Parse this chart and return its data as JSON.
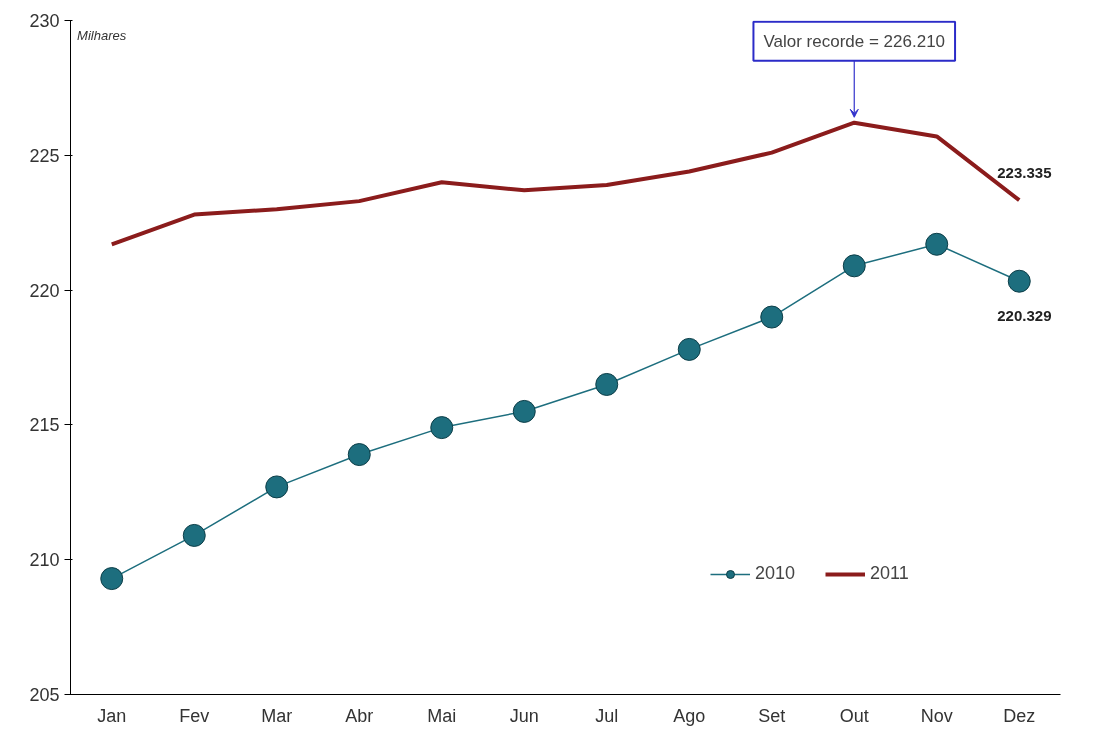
{
  "chart_data": {
    "type": "line",
    "ylabel": "Milhares",
    "categories": [
      "Jan",
      "Fev",
      "Mar",
      "Abr",
      "Mai",
      "Jun",
      "Jul",
      "Ago",
      "Set",
      "Out",
      "Nov",
      "Dez"
    ],
    "series": [
      {
        "name": "2010",
        "color": "#1d6e7e",
        "marker": "circle",
        "values": [
          209.3,
          210.9,
          212.7,
          213.9,
          214.9,
          215.5,
          216.5,
          217.8,
          219.0,
          220.9,
          221.7,
          220.329
        ],
        "value_labels": [
          null,
          null,
          null,
          null,
          null,
          null,
          null,
          null,
          null,
          null,
          null,
          "220.329"
        ]
      },
      {
        "name": "2011",
        "color": "#8b1c1c",
        "marker": "none",
        "values": [
          221.7,
          222.8,
          223.0,
          223.3,
          224.0,
          223.7,
          223.9,
          224.4,
          225.1,
          226.21,
          225.7,
          223.335
        ],
        "value_labels": [
          null,
          null,
          null,
          null,
          null,
          null,
          null,
          null,
          null,
          null,
          null,
          "223.335"
        ]
      }
    ],
    "ylim": [
      205,
      230
    ],
    "yticks": [
      205,
      210,
      215,
      220,
      225,
      230
    ],
    "grid": false,
    "legend": "bottom right",
    "annotations": [
      {
        "text": "Valor recorde = 226.210",
        "x": "Out",
        "y": 226.21
      }
    ]
  }
}
